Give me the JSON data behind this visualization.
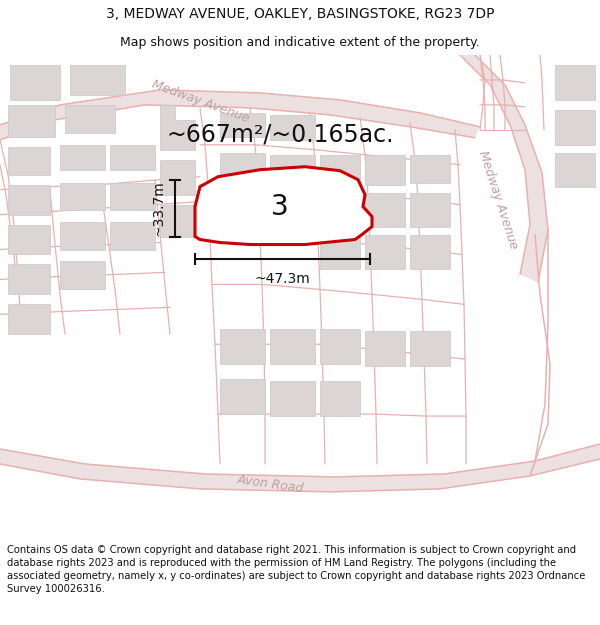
{
  "title_line1": "3, MEDWAY AVENUE, OAKLEY, BASINGSTOKE, RG23 7DP",
  "title_line2": "Map shows position and indicative extent of the property.",
  "area_text": "~667m²/~0.165ac.",
  "label_3": "3",
  "dim_width": "~47.3m",
  "dim_height": "~33.7m",
  "road_label_medway_top": "Medway Avenue",
  "road_label_medway_right": "Medway Avenue",
  "road_label_avon": "Avon Road",
  "footer": "Contains OS data © Crown copyright and database right 2021. This information is subject to Crown copyright and database rights 2023 and is reproduced with the permission of HM Land Registry. The polygons (including the associated geometry, namely x, y co-ordinates) are subject to Crown copyright and database rights 2023 Ordnance Survey 100026316.",
  "map_bg": "#f7f4f4",
  "road_line_color": "#e8b0b0",
  "road_fill_color": "#ede0e0",
  "building_color": "#dbd5d5",
  "building_edge_color": "#ccc6c6",
  "property_fill": "#ffffff",
  "property_edge": "#cc0000",
  "property_lw": 2.2,
  "dim_color": "#111111",
  "text_color": "#111111",
  "road_text_color": "#c0a0a0",
  "title_fontsize": 10,
  "subtitle_fontsize": 9,
  "area_fontsize": 17,
  "label_fontsize": 20,
  "dim_fontsize": 10,
  "road_fontsize": 9,
  "footer_fontsize": 7.2
}
